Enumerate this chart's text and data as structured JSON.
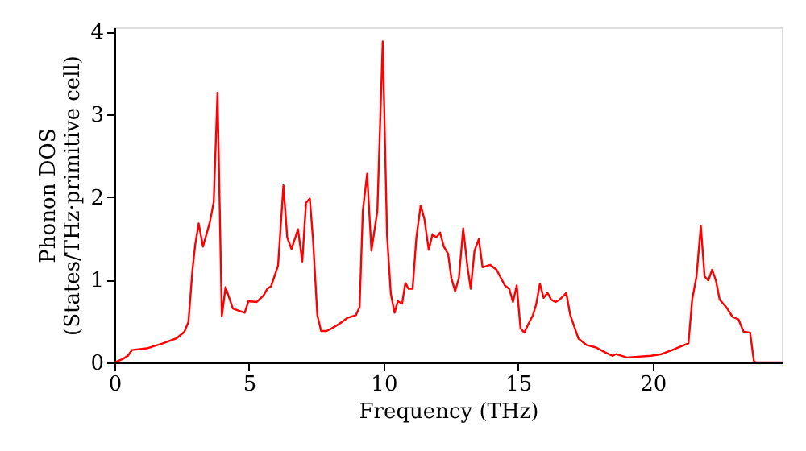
{
  "chart_data": {
    "type": "line",
    "xlabel": "Frequency (THz)",
    "ylabel": "Phonon DOS\n(States/THz·primitive cell)",
    "x": [
      0,
      0.3,
      0.5,
      0.65,
      1.2,
      1.8,
      2.3,
      2.6,
      2.75,
      2.9,
      3.0,
      3.13,
      3.29,
      3.55,
      3.69,
      3.83,
      3.99,
      4.13,
      4.4,
      4.84,
      4.98,
      5.28,
      5.54,
      5.68,
      5.82,
      6.08,
      6.28,
      6.42,
      6.58,
      6.82,
      6.98,
      7.12,
      7.26,
      7.38,
      7.54,
      7.68,
      7.88,
      8.07,
      8.37,
      8.67,
      8.97,
      9.11,
      9.23,
      9.39,
      9.55,
      9.77,
      9.97,
      10.13,
      10.27,
      10.41,
      10.53,
      10.69,
      10.81,
      10.93,
      11.08,
      11.22,
      11.38,
      11.52,
      11.68,
      11.82,
      11.96,
      12.1,
      12.24,
      12.4,
      12.52,
      12.66,
      12.8,
      12.96,
      13.12,
      13.24,
      13.38,
      13.54,
      13.68,
      13.96,
      14.2,
      14.51,
      14.67,
      14.81,
      14.95,
      15.09,
      15.23,
      15.39,
      15.55,
      15.67,
      15.81,
      15.95,
      16.09,
      16.23,
      16.39,
      16.55,
      16.79,
      16.94,
      17.24,
      17.54,
      17.9,
      18.24,
      18.5,
      18.64,
      19.04,
      19.94,
      20.33,
      20.73,
      21.03,
      21.33,
      21.47,
      21.63,
      21.79,
      21.93,
      22.07,
      22.21,
      22.35,
      22.49,
      22.73,
      22.97,
      23.19,
      23.38,
      23.62,
      23.76,
      23.82,
      24.8
    ],
    "series": [
      {
        "color": "#ff0000",
        "values": [
          0,
          0.04,
          0.08,
          0.15,
          0.17,
          0.23,
          0.29,
          0.37,
          0.49,
          1.12,
          1.42,
          1.68,
          1.4,
          1.7,
          1.94,
          3.26,
          0.56,
          0.91,
          0.65,
          0.6,
          0.74,
          0.73,
          0.81,
          0.89,
          0.92,
          1.17,
          2.14,
          1.51,
          1.37,
          1.61,
          1.22,
          1.93,
          1.98,
          1.48,
          0.57,
          0.38,
          0.38,
          0.41,
          0.47,
          0.54,
          0.57,
          0.67,
          1.83,
          2.28,
          1.35,
          1.83,
          3.88,
          1.54,
          0.83,
          0.6,
          0.74,
          0.71,
          0.96,
          0.89,
          0.89,
          1.51,
          1.9,
          1.73,
          1.36,
          1.55,
          1.51,
          1.57,
          1.4,
          1.31,
          1.02,
          0.86,
          1.02,
          1.62,
          1.15,
          0.89,
          1.35,
          1.49,
          1.15,
          1.18,
          1.12,
          0.93,
          0.89,
          0.73,
          0.93,
          0.41,
          0.36,
          0.47,
          0.57,
          0.7,
          0.95,
          0.78,
          0.84,
          0.76,
          0.73,
          0.76,
          0.84,
          0.57,
          0.29,
          0.21,
          0.18,
          0.12,
          0.08,
          0.1,
          0.06,
          0.08,
          0.1,
          0.15,
          0.19,
          0.23,
          0.76,
          1.04,
          1.65,
          1.04,
          0.99,
          1.12,
          0.99,
          0.76,
          0.67,
          0.55,
          0.52,
          0.37,
          0.36,
          0.02,
          0,
          0
        ]
      }
    ],
    "xlim": [
      0,
      24.8
    ],
    "ylim": [
      0,
      4.05
    ],
    "xticks": [
      0,
      5,
      10,
      15,
      20
    ],
    "yticks": [
      0,
      1,
      2,
      3,
      4
    ],
    "grid": false,
    "marker": "none",
    "line_style": "solid"
  }
}
